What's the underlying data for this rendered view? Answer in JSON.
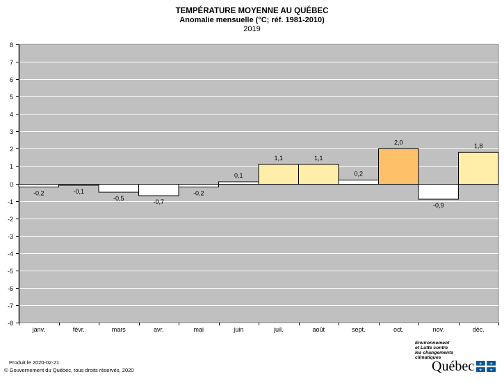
{
  "title": {
    "line1": "TEMPÉRATURE MOYENNE AU QUÉBEC",
    "line2": "Anomalie mensuelle (°C; réf. 1981-2010)",
    "line3": "2019"
  },
  "chart_data": {
    "type": "bar",
    "categories": [
      "janv.",
      "févr.",
      "mars",
      "avr.",
      "mai",
      "juin",
      "juil.",
      "août",
      "sept.",
      "oct.",
      "nov.",
      "déc."
    ],
    "values": [
      -0.2,
      -0.1,
      -0.5,
      -0.7,
      -0.2,
      0.1,
      1.1,
      1.1,
      0.2,
      2.0,
      -0.9,
      1.8
    ],
    "value_labels": [
      "-0,2",
      "-0,1",
      "-0,5",
      "-0,7",
      "-0,2",
      "0,1",
      "1,1",
      "1,1",
      "0,2",
      "2,0",
      "-0,9",
      "1,8"
    ],
    "bar_colors": [
      "#ffffff",
      "#ffffff",
      "#ffffff",
      "#ffffff",
      "#ffffff",
      "#ffffff",
      "#ffeeaa",
      "#ffeeaa",
      "#ffffff",
      "#ffc06a",
      "#ffffff",
      "#ffeeaa"
    ],
    "ylim": [
      -8,
      8
    ],
    "yticks": [
      -8,
      -7,
      -6,
      -5,
      -4,
      -3,
      -2,
      -1,
      0,
      1,
      2,
      3,
      4,
      5,
      6,
      7,
      8
    ],
    "grid": true,
    "plot_background": "#c0c0c0",
    "xlabel": "",
    "ylabel": ""
  },
  "footer": {
    "produced": "Produit le 2020-02-21",
    "copyright": "© Gouvernement du Québec, tous droits réservés, 2020"
  },
  "logo": {
    "line1": "Environnement",
    "line2": "et Lutte contre",
    "line3": "les changements",
    "line4": "climatiques",
    "name": "Québec",
    "flag_color": "#095797"
  }
}
